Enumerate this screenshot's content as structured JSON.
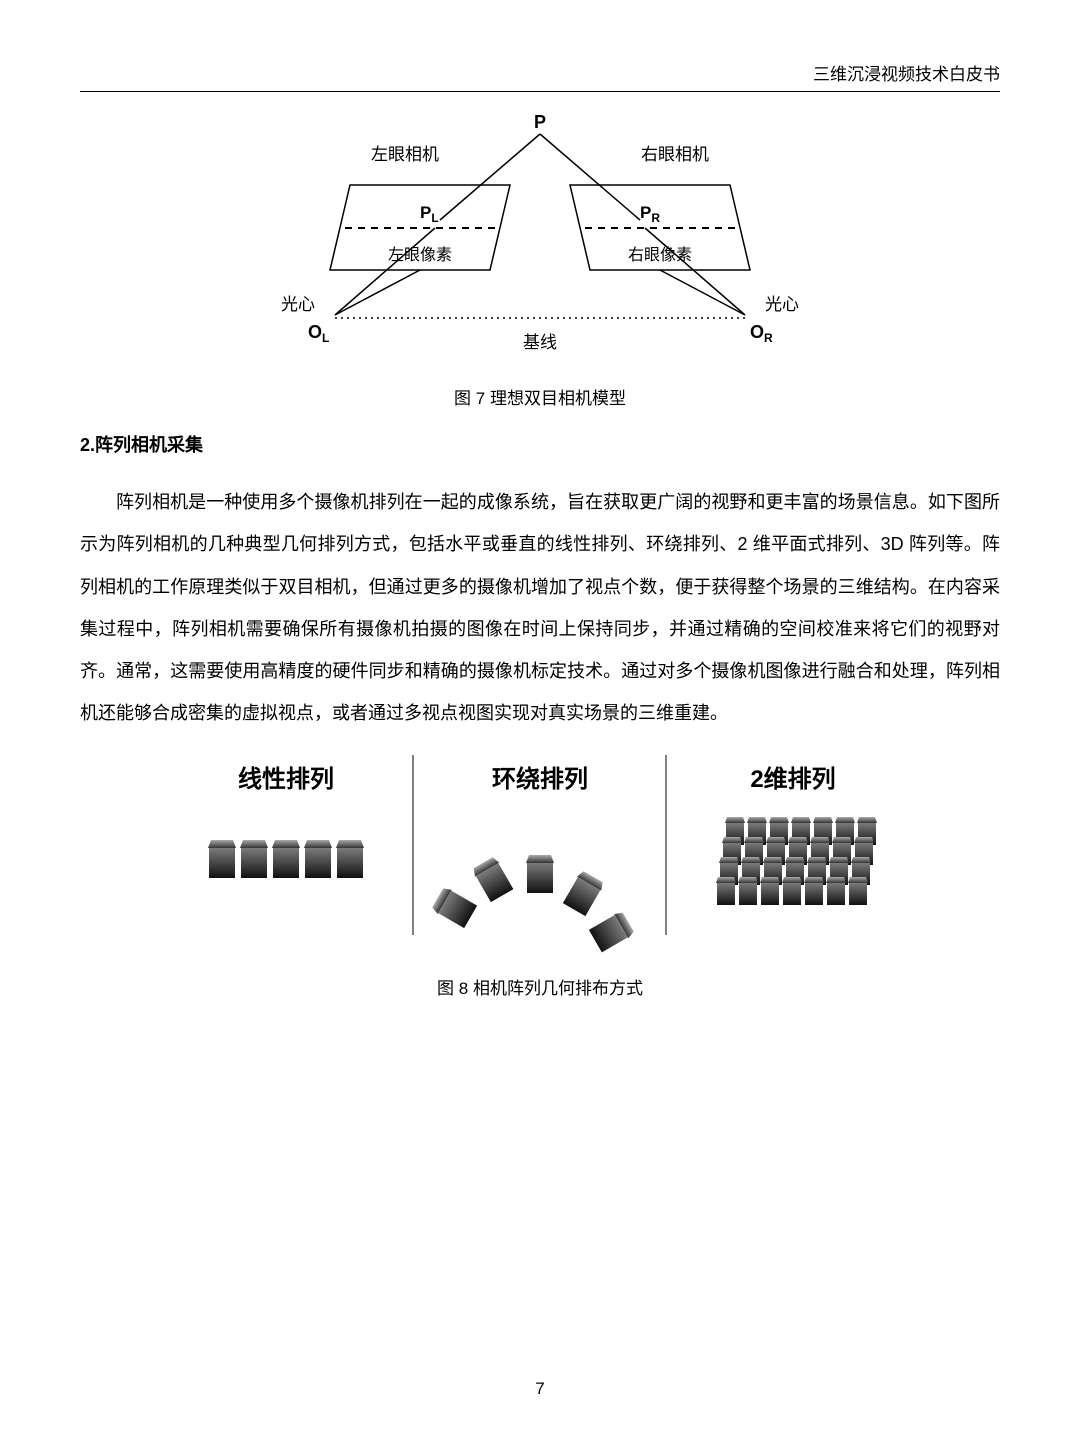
{
  "header": {
    "title": "三维沉浸视频技术白皮书"
  },
  "figure7": {
    "caption": "图 7  理想双目相机模型",
    "labels": {
      "P": "P",
      "left_camera": "左眼相机",
      "right_camera": "右眼相机",
      "PL": "P",
      "PL_sub": "L",
      "PR": "P",
      "PR_sub": "R",
      "left_pixel": "左眼像素",
      "right_pixel": "右眼像素",
      "optical_center_left": "光心",
      "optical_center_right": "光心",
      "OL": "O",
      "OL_sub": "L",
      "OR": "O",
      "OR_sub": "R",
      "baseline": "基线"
    },
    "style": {
      "stroke": "#000000",
      "dash": "6,5",
      "text_color": "#000000",
      "label_fontsize": 17,
      "point_label_fontsize": 18
    }
  },
  "section2": {
    "heading": "2.阵列相机采集",
    "paragraph": "阵列相机是一种使用多个摄像机排列在一起的成像系统，旨在获取更广阔的视野和更丰富的场景信息。如下图所示为阵列相机的几种典型几何排列方式，包括水平或垂直的线性排列、环绕排列、2 维平面式排列、3D 阵列等。阵列相机的工作原理类似于双目相机，但通过更多的摄像机增加了视点个数，便于获得整个场景的三维结构。在内容采集过程中，阵列相机需要确保所有摄像机拍摄的图像在时间上保持同步，并通过精确的空间校准来将它们的视野对齐。通常，这需要使用高精度的硬件同步和精确的摄像机标定技术。通过对多个摄像机图像进行融合和处理，阵列相机还能够合成密集的虚拟视点，或者通过多视点视图实现对真实场景的三维重建。"
  },
  "figure8": {
    "caption": "图 8 相机阵列几何排布方式",
    "labels": {
      "linear": "线性排列",
      "arc": "环绕排列",
      "grid": "2维排列"
    },
    "linear_count": 5,
    "arc_count": 5,
    "grid_rows": 4,
    "grid_cols": 7,
    "camera_style": {
      "body_top": "#555555",
      "body_bottom": "#1a1a1a",
      "lens_top": "#888888",
      "lens_bottom": "#333333",
      "width": 30,
      "height": 42
    }
  },
  "page_number": "7"
}
